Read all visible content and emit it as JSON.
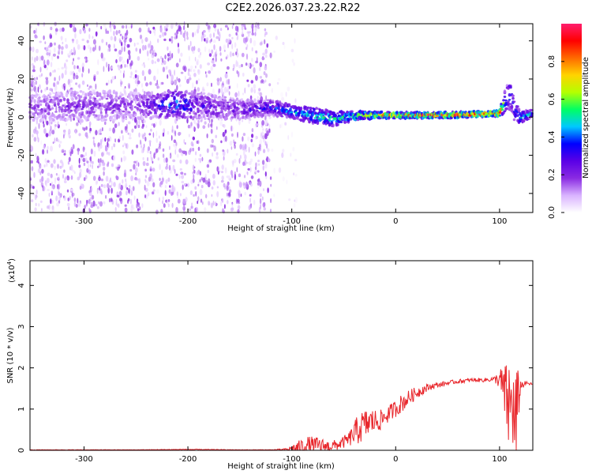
{
  "page": {
    "title": "C2E2.2026.037.23.22.R22"
  },
  "chart_data": [
    {
      "type": "heatmap",
      "title": "",
      "xlabel": "Height of straight line (km)",
      "ylabel": "Frequency (Hz)",
      "xlim": [
        -352,
        132
      ],
      "ylim": [
        -50,
        49
      ],
      "x_ticks": [
        -300,
        -200,
        -100,
        0,
        100
      ],
      "x_tick_labels": [
        "-300",
        "-200",
        "-100",
        "0",
        "100"
      ],
      "y_ticks": [
        -40,
        -20,
        0,
        20,
        40
      ],
      "y_tick_labels": [
        "-40",
        "-20",
        "0",
        "20",
        "40"
      ],
      "colorbar": {
        "label": "Normalized spectral amplitude",
        "range": [
          0,
          1
        ],
        "ticks": [
          0.0,
          0.2,
          0.4,
          0.6,
          0.8
        ],
        "tick_labels": [
          "0.0",
          "0.2",
          "0.4",
          "0.6",
          "0.8"
        ],
        "colors": [
          "#ffffff",
          "#d9b3ff",
          "#8a2be2",
          "#5a00e6",
          "#0000ff",
          "#00c8ff",
          "#00ff64",
          "#b4ff00",
          "#ffd400",
          "#ff6a00",
          "#ff0000",
          "#ff1e6e"
        ]
      },
      "band": {
        "x": [
          -352,
          -300,
          -250,
          -210,
          -190,
          -150,
          -120,
          -100,
          -80,
          -60,
          -50,
          -30,
          0,
          50,
          100,
          105,
          110,
          115,
          120,
          132
        ],
        "center_hz": [
          5,
          6,
          6,
          7,
          6,
          4,
          5,
          3,
          1,
          -1,
          0,
          1,
          1,
          1,
          2,
          8,
          12,
          3,
          0,
          2
        ],
        "halfwidth_hz": [
          7,
          8,
          7,
          7,
          7,
          5,
          4,
          4,
          4,
          4,
          3,
          2,
          1.5,
          1.5,
          1.5,
          6,
          8,
          6,
          3,
          2
        ],
        "peak_amplitude": [
          0.2,
          0.22,
          0.2,
          0.45,
          0.3,
          0.25,
          0.35,
          0.45,
          0.5,
          0.55,
          0.55,
          0.7,
          0.85,
          0.9,
          0.9,
          0.5,
          0.4,
          0.35,
          0.5,
          0.45
        ]
      },
      "scatter_regions": [
        {
          "x_range": [
            -352,
            -120
          ],
          "y_range": [
            -50,
            49
          ],
          "amplitude": 0.15
        },
        {
          "x_range": [
            -120,
            -95
          ],
          "y_range": [
            -50,
            49
          ],
          "amplitude": 0.05
        }
      ],
      "grid": false
    },
    {
      "type": "line",
      "title": "",
      "xlabel": "Height of straight line (km)",
      "ylabel": "SNR (10 * v/v)",
      "y_multiplier_label": "(x10",
      "y_multiplier_exponent": "4",
      "y_multiplier_close": ")",
      "xlim": [
        -352,
        132
      ],
      "ylim": [
        0,
        4.6
      ],
      "x_ticks": [
        -300,
        -200,
        -100,
        0,
        100
      ],
      "x_tick_labels": [
        "-300",
        "-200",
        "-100",
        "0",
        "100"
      ],
      "y_ticks": [
        0,
        1,
        2,
        3,
        4
      ],
      "y_tick_labels": [
        "0",
        "1",
        "2",
        "3",
        "4"
      ],
      "series": [
        {
          "color": "#e8262b",
          "envelope": {
            "x": [
              -352,
              -300,
              -250,
              -200,
              -150,
              -120,
              -105,
              -95,
              -85,
              -75,
              -65,
              -55,
              -45,
              -35,
              -25,
              -15,
              -5,
              5,
              15,
              25,
              35,
              45,
              55,
              65,
              75,
              85,
              95,
              100,
              105,
              108,
              110,
              112,
              114,
              116,
              118,
              120,
              125,
              132
            ],
            "baseline": [
              0.01,
              0.01,
              0.01,
              0.02,
              0.01,
              0.01,
              0.02,
              0.05,
              0.1,
              0.1,
              0.08,
              0.12,
              0.25,
              0.5,
              0.65,
              0.7,
              0.9,
              1.1,
              1.3,
              1.45,
              1.55,
              1.6,
              1.65,
              1.68,
              1.7,
              1.7,
              1.72,
              1.7,
              1.3,
              1.0,
              0.8,
              1.2,
              0.5,
              0.4,
              1.1,
              1.55,
              1.62,
              1.6
            ],
            "noise": [
              0.01,
              0.01,
              0.01,
              0.02,
              0.01,
              0.01,
              0.05,
              0.3,
              0.45,
              0.4,
              0.3,
              0.25,
              0.35,
              0.8,
              0.7,
              0.5,
              0.4,
              0.45,
              0.35,
              0.25,
              0.15,
              0.12,
              0.1,
              0.1,
              0.1,
              0.1,
              0.12,
              0.5,
              1.5,
              2.0,
              3.0,
              1.5,
              2.8,
              3.2,
              1.5,
              0.3,
              0.1,
              0.05
            ]
          }
        }
      ],
      "grid": false
    }
  ]
}
